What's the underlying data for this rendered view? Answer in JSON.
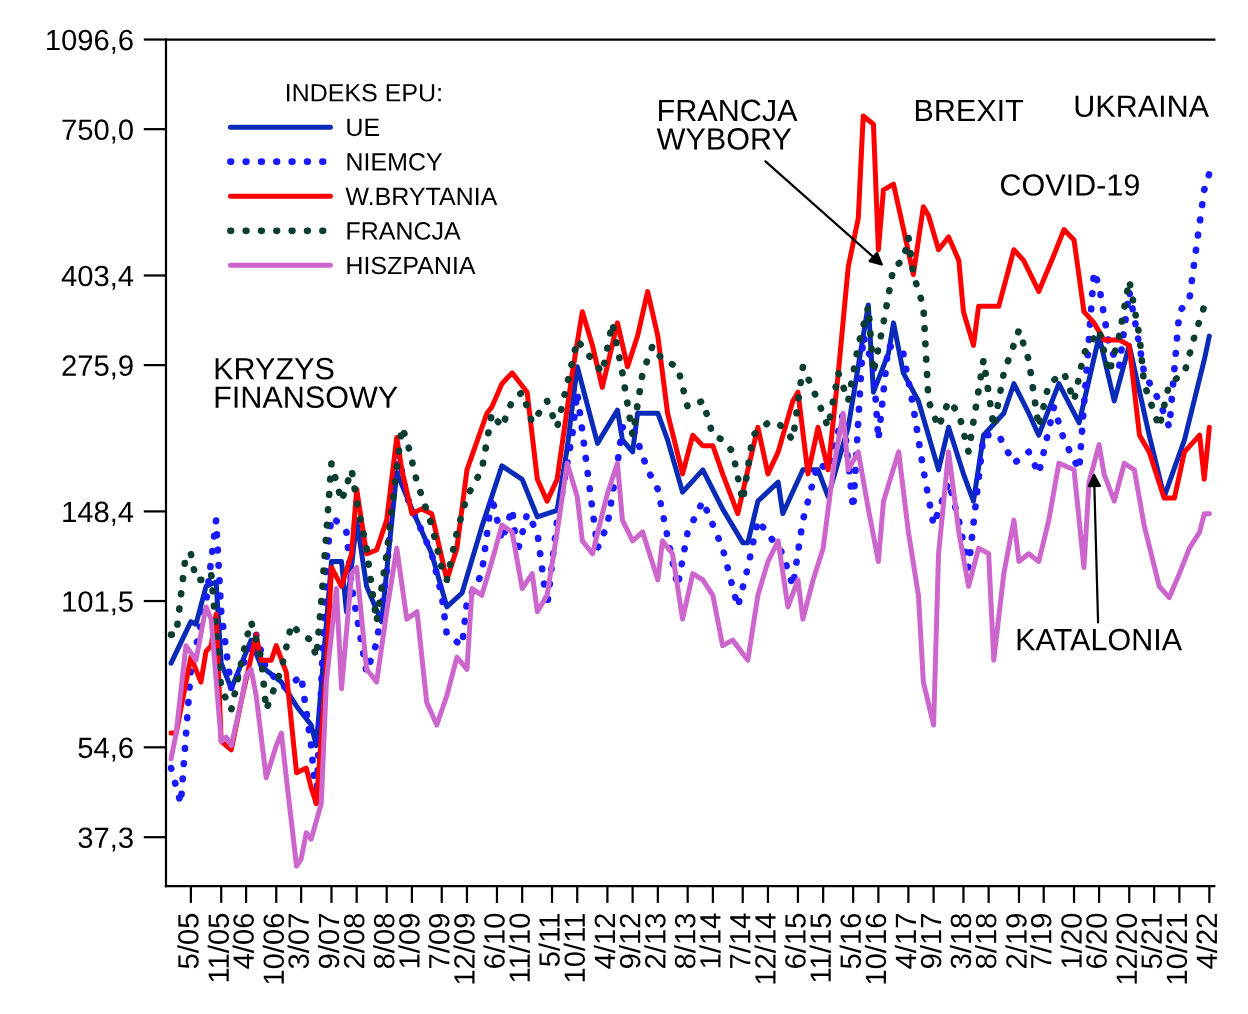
{
  "chart_data": {
    "type": "line",
    "log": "y",
    "grid": false,
    "legend": "top left",
    "legend_title": "INDEKS EPU:",
    "xlim": [
      "2004-12",
      "2022-05"
    ],
    "ylim": [
      30.3,
      1096.6
    ],
    "yticks": [
      {
        "value": 37.3,
        "label": "37,3"
      },
      {
        "value": 54.6,
        "label": "54,6"
      },
      {
        "value": 101.5,
        "label": "101,5"
      },
      {
        "value": 148.4,
        "label": "148,4"
      },
      {
        "value": 275.9,
        "label": "275,9"
      },
      {
        "value": 403.4,
        "label": "403,4"
      },
      {
        "value": 750.0,
        "label": "750,0"
      },
      {
        "value": 1096.6,
        "label": "1096,6"
      }
    ],
    "xticks": [
      {
        "value": "2005-05",
        "label": "5/05"
      },
      {
        "value": "2005-11",
        "label": "11/05"
      },
      {
        "value": "2006-04",
        "label": "4/06"
      },
      {
        "value": "2006-10",
        "label": "10/06"
      },
      {
        "value": "2007-03",
        "label": "3/07"
      },
      {
        "value": "2007-09",
        "label": "9/07"
      },
      {
        "value": "2008-02",
        "label": "2/08"
      },
      {
        "value": "2008-08",
        "label": "8/08"
      },
      {
        "value": "2009-01",
        "label": "1/09"
      },
      {
        "value": "2009-07",
        "label": "7/09"
      },
      {
        "value": "2009-12",
        "label": "12/09"
      },
      {
        "value": "2010-06",
        "label": "6/10"
      },
      {
        "value": "2010-11",
        "label": "11/10"
      },
      {
        "value": "2011-05",
        "label": "5/11"
      },
      {
        "value": "2011-10",
        "label": "10/11"
      },
      {
        "value": "2012-04",
        "label": "4/12"
      },
      {
        "value": "2012-09",
        "label": "9/12"
      },
      {
        "value": "2013-02",
        "label": "2/13"
      },
      {
        "value": "2013-08",
        "label": "8/13"
      },
      {
        "value": "2014-01",
        "label": "1/14"
      },
      {
        "value": "2014-07",
        "label": "7/14"
      },
      {
        "value": "2014-12",
        "label": "12/14"
      },
      {
        "value": "2015-06",
        "label": "6/15"
      },
      {
        "value": "2015-11",
        "label": "11/15"
      },
      {
        "value": "2016-05",
        "label": "5/16"
      },
      {
        "value": "2016-10",
        "label": "10/16"
      },
      {
        "value": "2017-04",
        "label": "4/17"
      },
      {
        "value": "2017-09",
        "label": "9/17"
      },
      {
        "value": "2018-03",
        "label": "3/18"
      },
      {
        "value": "2018-08",
        "label": "8/18"
      },
      {
        "value": "2019-02",
        "label": "2/19"
      },
      {
        "value": "2019-07",
        "label": "7/19"
      },
      {
        "value": "2020-01",
        "label": "1/20"
      },
      {
        "value": "2020-06",
        "label": "6/20"
      },
      {
        "value": "2020-12",
        "label": "12/20"
      },
      {
        "value": "2021-05",
        "label": "5/21"
      },
      {
        "value": "2021-10",
        "label": "10/21"
      },
      {
        "value": "2022-04",
        "label": "4/22"
      }
    ],
    "annotations": [
      "KRYZYS\nFINANSOWY",
      {
        "text": "FRANCJA\nWYBORY",
        "x": "2016-11",
        "y": 420
      },
      "BREXIT",
      "COVID-19",
      "UKRAINA",
      {
        "text": "KATALONIA",
        "x": "2020-05",
        "y": 175
      }
    ],
    "series": [
      {
        "name": "UE",
        "color": "#0a2ab8",
        "line_style": "solid",
        "x": [
          "2005-01",
          "2005-05",
          "2005-06",
          "2005-08",
          "2005-10",
          "2005-11",
          "2006-01",
          "2006-05",
          "2006-07",
          "2006-11",
          "2007-02",
          "2007-05",
          "2007-06",
          "2007-09",
          "2007-11",
          "2007-12",
          "2008-02",
          "2008-04",
          "2008-07",
          "2008-10",
          "2009-01",
          "2009-05",
          "2009-08",
          "2009-11",
          "2010-03",
          "2010-07",
          "2010-11",
          "2011-02",
          "2011-06",
          "2011-08",
          "2011-10",
          "2012-02",
          "2012-06",
          "2012-07",
          "2012-09",
          "2012-10",
          "2013-02",
          "2013-04",
          "2013-07",
          "2013-11",
          "2014-03",
          "2014-07",
          "2014-08",
          "2014-10",
          "2015-02",
          "2015-03",
          "2015-07",
          "2015-10",
          "2015-12",
          "2016-04",
          "2016-08",
          "2016-09",
          "2016-12",
          "2017-01",
          "2017-03",
          "2017-06",
          "2017-10",
          "2017-12",
          "2018-03",
          "2018-05",
          "2018-07",
          "2018-11",
          "2019-01",
          "2019-04",
          "2019-06",
          "2019-10",
          "2020-02",
          "2020-06",
          "2020-09",
          "2020-12",
          "2021-04",
          "2021-07",
          "2021-11",
          "2022-03",
          "2022-04"
        ],
        "values": [
          78,
          93,
          92,
          108,
          110,
          78,
          70,
          86,
          77,
          72,
          65,
          60,
          55,
          120,
          120,
          97,
          143,
          108,
          93,
          175,
          150,
          124,
          99,
          105,
          139,
          180,
          170,
          145,
          149,
          194,
          274,
          198,
          228,
          201,
          191,
          225,
          225,
          201,
          161,
          177,
          150,
          130,
          130,
          155,
          168,
          147,
          177,
          177,
          158,
          212,
          356,
          246,
          290,
          330,
          267,
          237,
          177,
          212,
          174,
          155,
          205,
          225,
          255,
          225,
          205,
          255,
          216,
          312,
          237,
          300,
          205,
          158,
          201,
          282,
          312
        ]
      },
      {
        "name": "NIEMCY",
        "color": "#1a1aff",
        "line_style": "dotted",
        "x": [
          "2005-01",
          "2005-03",
          "2005-05",
          "2005-08",
          "2005-10",
          "2005-11",
          "2006-01",
          "2006-03",
          "2006-06",
          "2006-08",
          "2006-12",
          "2007-03",
          "2007-05",
          "2007-06",
          "2007-08",
          "2007-09",
          "2007-11",
          "2007-12",
          "2008-01",
          "2008-04",
          "2008-06",
          "2008-08",
          "2008-10",
          "2008-12",
          "2009-02",
          "2009-05",
          "2009-07",
          "2009-08",
          "2009-11",
          "2009-12",
          "2010-03",
          "2010-05",
          "2010-07",
          "2010-09",
          "2010-10",
          "2010-12",
          "2011-02",
          "2011-04",
          "2011-06",
          "2011-09",
          "2011-10",
          "2011-12",
          "2012-02",
          "2012-04",
          "2012-06",
          "2012-07",
          "2012-09",
          "2012-12",
          "2013-02",
          "2013-06",
          "2013-08",
          "2013-11",
          "2014-03",
          "2014-06",
          "2014-08",
          "2014-10",
          "2015-01",
          "2015-03",
          "2015-05",
          "2015-07",
          "2015-10",
          "2015-12",
          "2016-03",
          "2016-05",
          "2016-07",
          "2016-09",
          "2016-10",
          "2016-12",
          "2017-03",
          "2017-05",
          "2017-07",
          "2017-09",
          "2017-12",
          "2018-02",
          "2018-04",
          "2018-07",
          "2018-10",
          "2019-01",
          "2019-04",
          "2019-06",
          "2019-09",
          "2019-11",
          "2020-02",
          "2020-05",
          "2020-06",
          "2020-08",
          "2020-10",
          "2020-12",
          "2021-02",
          "2021-03",
          "2021-06",
          "2021-08",
          "2021-10",
          "2021-12",
          "2022-01",
          "2022-03",
          "2022-04"
        ],
        "values": [
          50,
          43,
          76,
          101,
          143,
          97,
          70,
          76,
          88,
          76,
          70,
          74,
          55,
          43,
          120,
          145,
          140,
          136,
          108,
          75,
          85,
          115,
          197,
          158,
          143,
          124,
          104,
          88,
          84,
          101,
          114,
          158,
          131,
          150,
          124,
          147,
          136,
          99,
          143,
          205,
          246,
          177,
          127,
          140,
          182,
          212,
          212,
          177,
          163,
          108,
          136,
          155,
          127,
          99,
          117,
          143,
          131,
          124,
          108,
          143,
          182,
          177,
          225,
          150,
          312,
          274,
          201,
          300,
          290,
          231,
          177,
          140,
          168,
          143,
          117,
          205,
          205,
          182,
          191,
          174,
          231,
          201,
          177,
          410,
          386,
          300,
          274,
          377,
          300,
          267,
          237,
          212,
          346,
          365,
          430,
          580,
          622
        ]
      },
      {
        "name": "W.BRYTANIA",
        "color": "#ff0000",
        "line_style": "solid",
        "x": [
          "2005-01",
          "2005-02",
          "2005-05",
          "2005-07",
          "2005-08",
          "2005-09",
          "2005-10",
          "2005-11",
          "2006-01",
          "2006-03",
          "2006-06",
          "2006-07",
          "2006-09",
          "2006-10",
          "2006-12",
          "2007-02",
          "2007-04",
          "2007-05",
          "2007-06",
          "2007-08",
          "2007-09",
          "2007-11",
          "2008-01",
          "2008-02",
          "2008-04",
          "2008-06",
          "2008-08",
          "2008-10",
          "2008-11",
          "2009-01",
          "2009-03",
          "2009-05",
          "2009-08",
          "2009-10",
          "2009-12",
          "2010-04",
          "2010-05",
          "2010-07",
          "2010-09",
          "2010-12",
          "2011-02",
          "2011-04",
          "2011-06",
          "2011-09",
          "2011-11",
          "2012-01",
          "2012-03",
          "2012-06",
          "2012-08",
          "2012-10",
          "2012-12",
          "2013-02",
          "2013-04",
          "2013-07",
          "2013-09",
          "2013-11",
          "2014-01",
          "2014-03",
          "2014-06",
          "2014-08",
          "2014-10",
          "2014-12",
          "2015-02",
          "2015-05",
          "2015-06",
          "2015-08",
          "2015-10",
          "2015-12",
          "2016-02",
          "2016-04",
          "2016-06",
          "2016-07",
          "2016-09",
          "2016-10",
          "2016-11",
          "2017-01",
          "2017-03",
          "2017-05",
          "2017-07",
          "2017-08",
          "2017-10",
          "2017-12",
          "2018-02",
          "2018-03",
          "2018-05",
          "2018-06",
          "2018-08",
          "2018-10",
          "2019-01",
          "2019-03",
          "2019-06",
          "2019-09",
          "2019-11",
          "2020-01",
          "2020-03",
          "2020-05",
          "2020-07",
          "2020-10",
          "2020-12",
          "2021-02",
          "2021-04",
          "2021-07",
          "2021-09",
          "2021-11",
          "2022-02",
          "2022-03",
          "2022-04"
        ],
        "values": [
          58,
          58,
          80,
          72,
          82,
          84,
          96,
          56,
          54,
          66,
          88,
          79,
          79,
          84,
          75,
          49,
          50,
          46,
          43,
          76,
          117,
          108,
          124,
          163,
          124,
          126,
          143,
          203,
          177,
          147,
          150,
          147,
          111,
          127,
          177,
          225,
          231,
          255,
          267,
          246,
          170,
          155,
          170,
          267,
          346,
          300,
          251,
          330,
          274,
          312,
          377,
          312,
          225,
          174,
          205,
          196,
          196,
          174,
          147,
          177,
          212,
          174,
          191,
          237,
          246,
          174,
          212,
          177,
          267,
          418,
          514,
          793,
          766,
          450,
          580,
          594,
          493,
          405,
          540,
          520,
          450,
          475,
          430,
          346,
          300,
          354,
          354,
          354,
          450,
          430,
          377,
          440,
          490,
          469,
          346,
          330,
          307,
          307,
          300,
          205,
          191,
          157,
          157,
          191,
          205,
          170,
          212
        ]
      },
      {
        "name": "FRANCJA",
        "color": "#0b3d33",
        "line_style": "dotted",
        "x": [
          "2005-01",
          "2005-02",
          "2005-04",
          "2005-05",
          "2005-06",
          "2005-08",
          "2005-09",
          "2005-11",
          "2006-01",
          "2006-04",
          "2006-05",
          "2006-07",
          "2006-08",
          "2006-11",
          "2007-01",
          "2007-03",
          "2007-05",
          "2007-06",
          "2007-07",
          "2007-09",
          "2007-10",
          "2007-11",
          "2008-01",
          "2008-02",
          "2008-04",
          "2008-05",
          "2008-06",
          "2008-08",
          "2008-09",
          "2008-11",
          "2008-12",
          "2009-02",
          "2009-05",
          "2009-07",
          "2009-08",
          "2009-10",
          "2009-12",
          "2010-03",
          "2010-05",
          "2010-07",
          "2010-09",
          "2010-11",
          "2011-01",
          "2011-04",
          "2011-06",
          "2011-08",
          "2011-10",
          "2011-12",
          "2012-03",
          "2012-05",
          "2012-07",
          "2012-09",
          "2012-11",
          "2013-01",
          "2013-03",
          "2013-06",
          "2013-08",
          "2013-11",
          "2014-01",
          "2014-03",
          "2014-05",
          "2014-07",
          "2014-09",
          "2014-12",
          "2015-02",
          "2015-05",
          "2015-07",
          "2015-10",
          "2015-12",
          "2016-02",
          "2016-04",
          "2016-06",
          "2016-08",
          "2016-09",
          "2016-11",
          "2017-01",
          "2017-03",
          "2017-04",
          "2017-05",
          "2017-07",
          "2017-08",
          "2017-10",
          "2017-12",
          "2018-02",
          "2018-04",
          "2018-07",
          "2018-09",
          "2018-11",
          "2019-02",
          "2019-04",
          "2019-06",
          "2019-08",
          "2019-11",
          "2020-01",
          "2020-03",
          "2020-06",
          "2020-08",
          "2020-10",
          "2020-12",
          "2021-02",
          "2021-03",
          "2021-06",
          "2021-08",
          "2021-11",
          "2022-01",
          "2022-03",
          "2022-04"
        ],
        "values": [
          88,
          88,
          124,
          124,
          111,
          111,
          114,
          70,
          64,
          86,
          93,
          80,
          64,
          76,
          92,
          88,
          86,
          80,
          101,
          182,
          168,
          155,
          177,
          155,
          127,
          108,
          93,
          124,
          150,
          212,
          201,
          168,
          140,
          117,
          111,
          136,
          158,
          177,
          225,
          212,
          237,
          246,
          216,
          237,
          212,
          255,
          307,
          290,
          267,
          330,
          267,
          205,
          267,
          300,
          282,
          274,
          231,
          237,
          205,
          201,
          191,
          155,
          205,
          216,
          216,
          201,
          274,
          237,
          212,
          267,
          237,
          300,
          354,
          267,
          330,
          418,
          430,
          475,
          405,
          354,
          237,
          212,
          237,
          225,
          191,
          282,
          212,
          267,
          320,
          282,
          212,
          255,
          267,
          237,
          290,
          320,
          267,
          312,
          395,
          312,
          255,
          212,
          255,
          267,
          312,
          354,
          346
        ]
      },
      {
        "name": "HISZPANIA",
        "color": "#cc66cc",
        "line_style": "solid",
        "x": [
          "2005-01",
          "2005-02",
          "2005-04",
          "2005-06",
          "2005-08",
          "2005-09",
          "2005-11",
          "2005-12",
          "2006-01",
          "2006-03",
          "2006-04",
          "2006-05",
          "2006-06",
          "2006-08",
          "2006-10",
          "2006-11",
          "2006-12",
          "2007-02",
          "2007-03",
          "2007-04",
          "2007-05",
          "2007-07",
          "2007-08",
          "2007-10",
          "2007-11",
          "2008-01",
          "2008-02",
          "2008-04",
          "2008-06",
          "2008-08",
          "2008-10",
          "2008-12",
          "2009-02",
          "2009-04",
          "2009-06",
          "2009-08",
          "2009-10",
          "2009-12",
          "2010-01",
          "2010-03",
          "2010-05",
          "2010-07",
          "2010-09",
          "2010-11",
          "2011-01",
          "2011-02",
          "2011-04",
          "2011-06",
          "2011-08",
          "2011-10",
          "2011-11",
          "2012-01",
          "2012-04",
          "2012-06",
          "2012-07",
          "2012-09",
          "2012-11",
          "2013-02",
          "2013-03",
          "2013-05",
          "2013-07",
          "2013-09",
          "2013-11",
          "2014-01",
          "2014-03",
          "2014-05",
          "2014-08",
          "2014-10",
          "2014-12",
          "2015-02",
          "2015-04",
          "2015-06",
          "2015-07",
          "2015-09",
          "2015-11",
          "2016-01",
          "2016-03",
          "2016-04",
          "2016-06",
          "2016-08",
          "2016-10",
          "2016-11",
          "2017-02",
          "2017-04",
          "2017-06",
          "2017-07",
          "2017-09",
          "2017-10",
          "2017-12",
          "2018-02",
          "2018-04",
          "2018-06",
          "2018-08",
          "2018-09",
          "2018-11",
          "2019-01",
          "2019-02",
          "2019-04",
          "2019-06",
          "2019-08",
          "2019-10",
          "2020-01",
          "2020-03",
          "2020-04",
          "2020-06",
          "2020-07",
          "2020-09",
          "2020-11",
          "2021-01",
          "2021-03",
          "2021-06",
          "2021-08",
          "2021-10",
          "2021-12",
          "2022-02",
          "2022-03",
          "2022-04"
        ],
        "values": [
          52,
          58,
          84,
          79,
          99,
          94,
          56,
          57,
          55,
          66,
          74,
          76,
          68,
          48,
          55,
          58,
          48,
          33,
          34,
          38,
          37,
          43,
          72,
          107,
          70,
          114,
          117,
          76,
          72,
          97,
          127,
          94,
          97,
          66,
          60,
          68,
          80,
          76,
          107,
          104,
          120,
          140,
          136,
          107,
          114,
          97,
          104,
          136,
          182,
          158,
          131,
          124,
          160,
          182,
          143,
          131,
          136,
          111,
          131,
          124,
          94,
          114,
          111,
          104,
          84,
          86,
          79,
          104,
          120,
          131,
          99,
          111,
          94,
          111,
          127,
          177,
          225,
          177,
          191,
          150,
          120,
          155,
          191,
          136,
          104,
          72,
          60,
          124,
          191,
          136,
          108,
          127,
          124,
          79,
          114,
          143,
          120,
          124,
          120,
          143,
          182,
          177,
          117,
          168,
          197,
          174,
          155,
          182,
          177,
          140,
          108,
          103,
          114,
          127,
          136,
          147,
          147
        ]
      }
    ]
  }
}
